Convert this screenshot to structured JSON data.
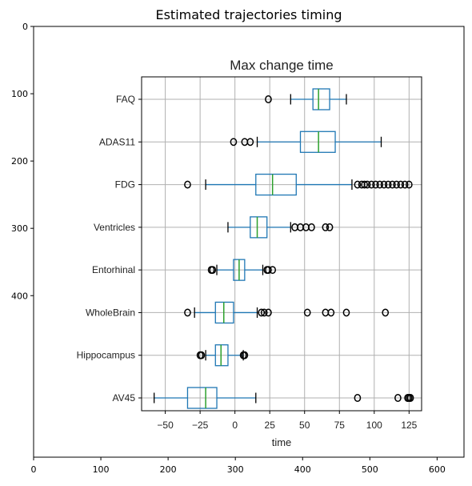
{
  "figure": {
    "title": "Estimated trajectories timing",
    "outer_x_ticks": [
      "0",
      "100",
      "200",
      "300",
      "400",
      "500",
      "600"
    ],
    "outer_y_ticks": [
      "0",
      "100",
      "200",
      "300",
      "400"
    ]
  },
  "chart_data": {
    "type": "boxplot",
    "orientation": "horizontal",
    "title": "Max change time",
    "xlabel": "time",
    "ylabel": "",
    "xlim": [
      -67,
      134
    ],
    "x_ticks": [
      -50,
      -25,
      0,
      25,
      50,
      75,
      100,
      125
    ],
    "x_tick_labels": [
      "−50",
      "−25",
      "0",
      "25",
      "50",
      "75",
      "100",
      "125"
    ],
    "grid": true,
    "colors": {
      "box": "#1f77b4",
      "median": "#2ca02c",
      "grid": "#b0b0b0",
      "outlier": "#000000"
    },
    "categories": [
      "FAQ",
      "ADAS11",
      "FDG",
      "Ventricles",
      "Entorhinal",
      "WholeBrain",
      "Hippocampus",
      "AV45"
    ],
    "boxes": [
      {
        "label": "FAQ",
        "whisker_low": 40,
        "q1": 56,
        "median": 60,
        "q3": 68,
        "whisker_high": 80,
        "outliers": [
          24
        ]
      },
      {
        "label": "ADAS11",
        "whisker_low": 16,
        "q1": 47,
        "median": 60,
        "q3": 72,
        "whisker_high": 105,
        "outliers": [
          -1,
          7,
          11
        ]
      },
      {
        "label": "FDG",
        "whisker_low": -21,
        "q1": 15,
        "median": 27,
        "q3": 44,
        "whisker_high": 84,
        "outliers": [
          -34,
          88,
          91,
          93,
          95,
          98,
          101,
          104,
          107,
          110,
          113,
          116,
          119,
          122,
          125
        ]
      },
      {
        "label": "Ventricles",
        "whisker_low": -5,
        "q1": 11,
        "median": 16,
        "q3": 23,
        "whisker_high": 40,
        "outliers": [
          43,
          47,
          51,
          55,
          65,
          68
        ]
      },
      {
        "label": "Entorhinal",
        "whisker_low": -13,
        "q1": -1,
        "median": 3,
        "q3": 7,
        "whisker_high": 20,
        "outliers": [
          -17,
          -16,
          23,
          24,
          27
        ]
      },
      {
        "label": "WholeBrain",
        "whisker_low": -29,
        "q1": -14,
        "median": -8,
        "q3": -1,
        "whisker_high": 16,
        "outliers": [
          -34,
          19,
          21,
          24,
          52,
          65,
          69,
          80,
          108
        ]
      },
      {
        "label": "Hippocampus",
        "whisker_low": -21,
        "q1": -14,
        "median": -10,
        "q3": -5,
        "whisker_high": 6,
        "outliers": [
          -25,
          -24,
          6,
          7
        ]
      },
      {
        "label": "AV45",
        "whisker_low": -58,
        "q1": -34,
        "median": -21,
        "q3": -13,
        "whisker_high": 15,
        "outliers": [
          88,
          117,
          124,
          125,
          126
        ]
      }
    ]
  }
}
